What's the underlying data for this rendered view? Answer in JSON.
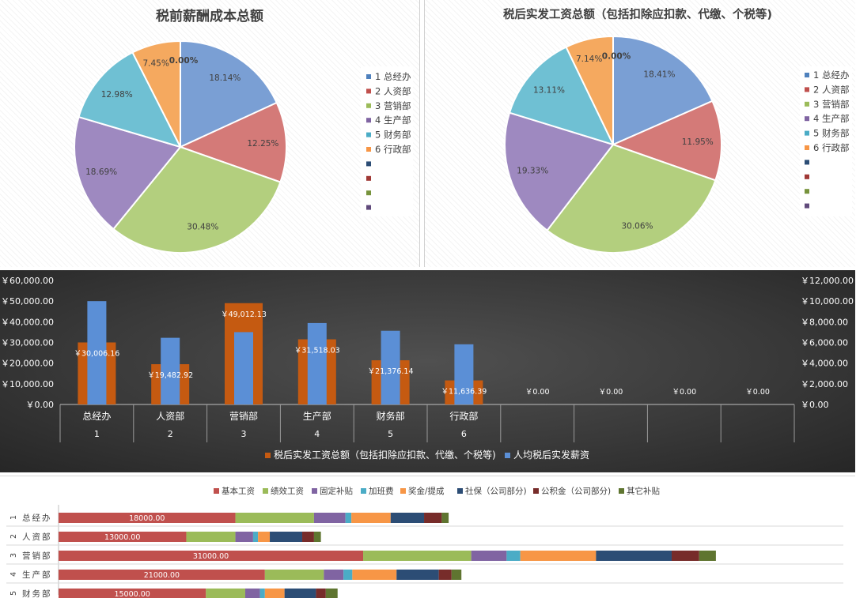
{
  "pie_charts": [
    {
      "title": "税前薪酬成本总额",
      "slices": [
        {
          "label": "18.14%",
          "value": 18.14,
          "color": "#7a9fd4"
        },
        {
          "label": "12.25%",
          "value": 12.25,
          "color": "#d47a78"
        },
        {
          "label": "30.48%",
          "value": 30.48,
          "color": "#b3cf7e"
        },
        {
          "label": "18.69%",
          "value": 18.69,
          "color": "#9e89c0"
        },
        {
          "label": "12.98%",
          "value": 12.98,
          "color": "#6fc0d3"
        },
        {
          "label": "7.45%",
          "value": 7.45,
          "color": "#f5a95f"
        },
        {
          "label": "0.00%",
          "value": 0,
          "color": "#f5a95f"
        }
      ],
      "legend": [
        {
          "label": "1 总经办",
          "color": "#4f81bd"
        },
        {
          "label": "2 人资部",
          "color": "#c0504d"
        },
        {
          "label": "3 营销部",
          "color": "#9bbb59"
        },
        {
          "label": "4 生产部",
          "color": "#8064a2"
        },
        {
          "label": "5 财务部",
          "color": "#4bacc6"
        },
        {
          "label": "6 行政部",
          "color": "#f79646"
        },
        {
          "label": "",
          "color": "#2c4d75"
        },
        {
          "label": "",
          "color": "#a03835"
        },
        {
          "label": "",
          "color": "#77933c"
        },
        {
          "label": "",
          "color": "#604a7b"
        }
      ]
    },
    {
      "title": "税后实发工资总额（包括扣除应扣款、代缴、个税等)",
      "slices": [
        {
          "label": "18.41%",
          "value": 18.41,
          "color": "#7a9fd4"
        },
        {
          "label": "11.95%",
          "value": 11.95,
          "color": "#d47a78"
        },
        {
          "label": "30.06%",
          "value": 30.06,
          "color": "#b3cf7e"
        },
        {
          "label": "19.33%",
          "value": 19.33,
          "color": "#9e89c0"
        },
        {
          "label": "13.11%",
          "value": 13.11,
          "color": "#6fc0d3"
        },
        {
          "label": "7.14%",
          "value": 7.14,
          "color": "#f5a95f"
        },
        {
          "label": "0.00%",
          "value": 0,
          "color": "#f5a95f"
        }
      ],
      "legend": [
        {
          "label": "1 总经办",
          "color": "#4f81bd"
        },
        {
          "label": "2 人资部",
          "color": "#c0504d"
        },
        {
          "label": "3 营销部",
          "color": "#9bbb59"
        },
        {
          "label": "4 生产部",
          "color": "#8064a2"
        },
        {
          "label": "5 财务部",
          "color": "#4bacc6"
        },
        {
          "label": "6 行政部",
          "color": "#f79646"
        },
        {
          "label": "",
          "color": "#2c4d75"
        },
        {
          "label": "",
          "color": "#a03835"
        },
        {
          "label": "",
          "color": "#77933c"
        },
        {
          "label": "",
          "color": "#604a7b"
        }
      ]
    }
  ],
  "chart_data": [
    {
      "type": "pie",
      "title": "税前薪酬成本总额",
      "categories": [
        "1 总经办",
        "2 人资部",
        "3 营销部",
        "4 生产部",
        "5 财务部",
        "6 行政部"
      ],
      "values": [
        18.14,
        12.25,
        30.48,
        18.69,
        12.98,
        7.45
      ]
    },
    {
      "type": "pie",
      "title": "税后实发工资总额（包括扣除应扣款、代缴、个税等)",
      "categories": [
        "1 总经办",
        "2 人资部",
        "3 营销部",
        "4 生产部",
        "5 财务部",
        "6 行政部"
      ],
      "values": [
        18.41,
        11.95,
        30.06,
        19.33,
        13.11,
        7.14
      ]
    },
    {
      "type": "bar",
      "categories": [
        {
          "name": "总经办",
          "num": "1"
        },
        {
          "name": "人资部",
          "num": "2"
        },
        {
          "name": "营销部",
          "num": "3"
        },
        {
          "name": "生产部",
          "num": "4"
        },
        {
          "name": "财务部",
          "num": "5"
        },
        {
          "name": "行政部",
          "num": "6"
        },
        {
          "name": "",
          "num": ""
        },
        {
          "name": "",
          "num": ""
        },
        {
          "name": "",
          "num": ""
        },
        {
          "name": "",
          "num": ""
        }
      ],
      "series": [
        {
          "name": "税后实发工资总额（包括扣除应扣款、代缴、个税等)",
          "axis": "left",
          "color": "#c55a11",
          "values": [
            30006.16,
            19482.92,
            49012.13,
            31518.03,
            21376.14,
            11636.39,
            0,
            0,
            0,
            0
          ],
          "labels": [
            "￥30,006.16",
            "￥19,482.92",
            "￥49,012.13",
            "￥31,518.03",
            "￥21,376.14",
            "￥11,636.39",
            "￥0.00",
            "￥0.00",
            "￥0.00",
            "￥0.00"
          ]
        },
        {
          "name": "人均税后实发薪资",
          "axis": "right",
          "color": "#5b8fd6",
          "values": [
            10000,
            6450,
            7000,
            7880,
            7130,
            5820,
            0,
            0,
            0,
            0
          ]
        }
      ],
      "ylim_left": [
        0,
        60000
      ],
      "ylim_right": [
        0,
        12000
      ],
      "left_ticks": [
        "￥0.00",
        "￥10,000.00",
        "￥20,000.00",
        "￥30,000.00",
        "￥40,000.00",
        "￥50,000.00",
        "￥60,000.00"
      ],
      "right_ticks": [
        "￥0.00",
        "￥2,000.00",
        "￥4,000.00",
        "￥6,000.00",
        "￥8,000.00",
        "￥10,000.00",
        "￥12,000.00"
      ],
      "legend_position": "bottom"
    },
    {
      "type": "bar",
      "orientation": "horizontal-stacked",
      "legend": [
        {
          "label": "基本工资",
          "color": "#c0504d"
        },
        {
          "label": "绩效工资",
          "color": "#9bbb59"
        },
        {
          "label": "固定补贴",
          "color": "#8064a2"
        },
        {
          "label": "加班费",
          "color": "#4bacc6"
        },
        {
          "label": "奖金/提成",
          "color": "#f79646"
        },
        {
          "label": "社保（公司部分)",
          "color": "#2c4d75"
        },
        {
          "label": "公积金（公司部分)",
          "color": "#772c2a"
        },
        {
          "label": "其它补贴",
          "color": "#5f7530"
        }
      ],
      "rows": [
        {
          "num": "1",
          "name": "总经办",
          "label": "18000.00",
          "values": [
            18000,
            8000,
            3200,
            600,
            4000,
            3400,
            1800,
            700
          ]
        },
        {
          "num": "2",
          "name": "人资部",
          "label": "13000.00",
          "values": [
            13000,
            5000,
            1800,
            500,
            1200,
            3300,
            1200,
            700
          ]
        },
        {
          "num": "3",
          "name": "营销部",
          "label": "31000.00",
          "values": [
            31000,
            11000,
            3600,
            1400,
            7700,
            7700,
            2800,
            1700
          ]
        },
        {
          "num": "4",
          "name": "生产部",
          "label": "21000.00",
          "values": [
            21000,
            6000,
            2000,
            900,
            4500,
            4300,
            1300,
            1000
          ]
        },
        {
          "num": "5",
          "name": "财务部",
          "label": "15000.00",
          "values": [
            15000,
            4000,
            1500,
            500,
            2000,
            3200,
            1000,
            1200
          ]
        }
      ]
    }
  ]
}
